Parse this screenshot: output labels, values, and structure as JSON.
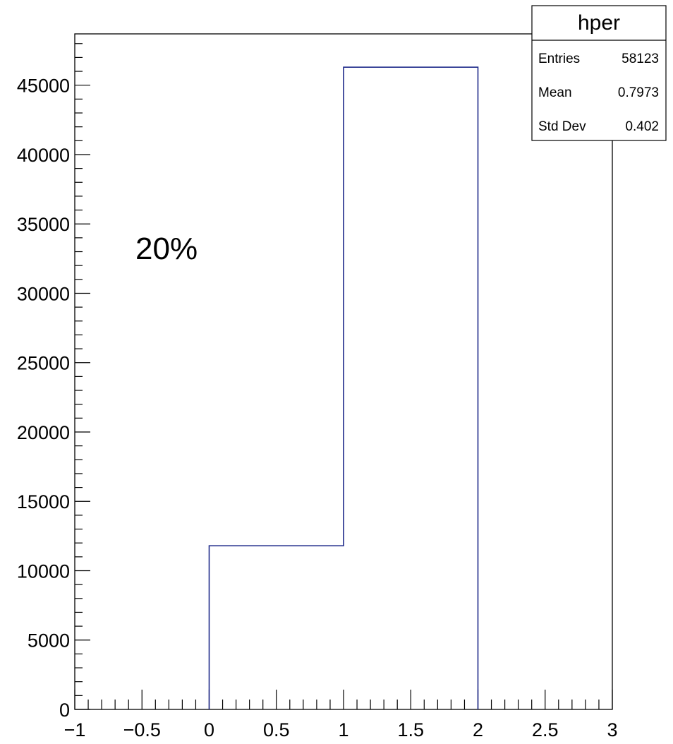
{
  "chart_data": {
    "type": "histogram",
    "title": "",
    "xlabel": "",
    "ylabel": "",
    "bins": [
      {
        "x_low": 0,
        "x_high": 1,
        "count": 11800
      },
      {
        "x_low": 1,
        "x_high": 2,
        "count": 46300
      }
    ],
    "x_ticks": [
      "−1",
      "−0.5",
      "0",
      "0.5",
      "1",
      "1.5",
      "2",
      "2.5",
      "3"
    ],
    "x_tick_values": [
      -1,
      -0.5,
      0,
      0.5,
      1,
      1.5,
      2,
      2.5,
      3
    ],
    "y_ticks": [
      "0",
      "5000",
      "10000",
      "15000",
      "20000",
      "25000",
      "30000",
      "35000",
      "40000",
      "45000"
    ],
    "y_tick_values": [
      0,
      5000,
      10000,
      15000,
      20000,
      25000,
      30000,
      35000,
      40000,
      45000
    ],
    "xlim": [
      -1,
      3
    ],
    "ylim": [
      0,
      48700
    ],
    "grid": false,
    "line_color": "#1f2a8a",
    "annotation": {
      "text": "20%"
    },
    "stats_box": {
      "title": "hper",
      "position": "top-right",
      "rows": [
        {
          "label": "Entries",
          "value": "58123"
        },
        {
          "label": "Mean",
          "value": "0.7973"
        },
        {
          "label": "Std Dev",
          "value": "0.402"
        }
      ]
    }
  }
}
